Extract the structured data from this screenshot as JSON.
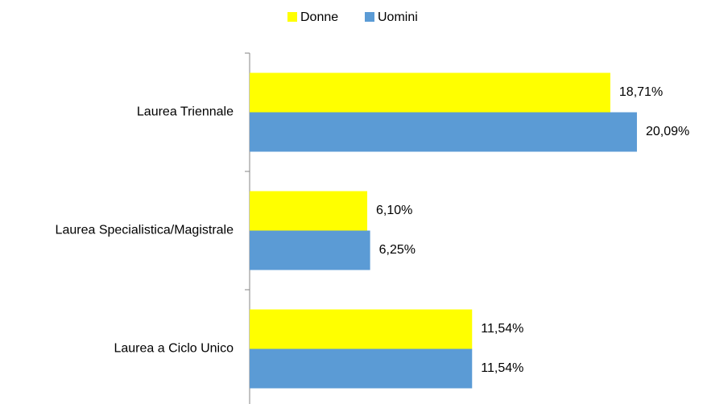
{
  "chart_data": {
    "type": "hbar",
    "categories": [
      "Laurea Triennale",
      "Laurea Specialistica/Magistrale",
      "Laurea a Ciclo Unico"
    ],
    "series": [
      {
        "name": "Donne",
        "color": "#ffff00",
        "values": [
          18.71,
          6.1,
          11.54
        ],
        "value_labels": [
          "18,71%",
          "6,10%",
          "11,54%"
        ]
      },
      {
        "name": "Uomini",
        "color": "#5b9bd5",
        "values": [
          20.09,
          6.25,
          11.54
        ],
        "value_labels": [
          "20,09%",
          "6,25%",
          "11,54%"
        ]
      }
    ],
    "legend": "top"
  }
}
